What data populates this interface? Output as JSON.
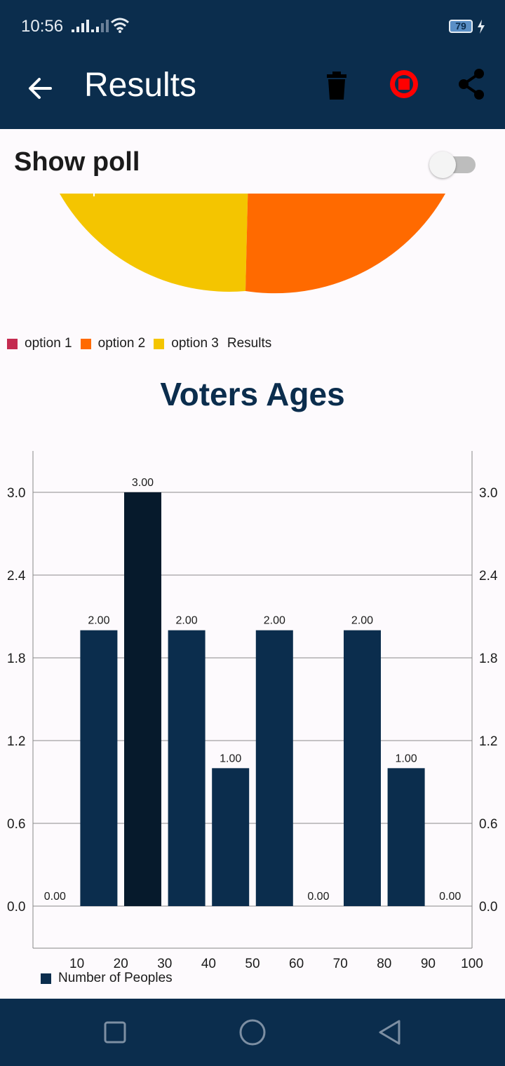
{
  "status_bar": {
    "time": "10:56",
    "battery": "79"
  },
  "app_bar": {
    "title": "Results",
    "icons": [
      "back-arrow-icon",
      "trash-icon",
      "stop-icon",
      "share-icon"
    ],
    "colors": {
      "background": "#0b2d4d",
      "stop": "#ff0000"
    }
  },
  "poll": {
    "label": "Show poll",
    "enabled": false
  },
  "pie": {
    "legend": [
      {
        "label": "option 1",
        "color": "#c42b50"
      },
      {
        "label": "option 2",
        "color": "#ff6a00"
      },
      {
        "label": "option 3",
        "color": "#f4c500"
      }
    ],
    "label": "Results"
  },
  "chart_data": {
    "type": "bar",
    "title": "Voters Ages",
    "categories": [
      "10",
      "20",
      "30",
      "40",
      "50",
      "60",
      "70",
      "80",
      "90",
      "100"
    ],
    "series": [
      {
        "name": "Number of Peoples",
        "values": [
          0,
          2,
          3,
          2,
          1,
          2,
          0,
          2,
          1,
          0
        ]
      }
    ],
    "value_labels": [
      "0.00",
      "2.00",
      "3.00",
      "2.00",
      "1.00",
      "2.00",
      "0.00",
      "2.00",
      "1.00",
      "0.00"
    ],
    "y_ticks": [
      "0.0",
      "0.6",
      "1.2",
      "1.8",
      "2.4",
      "3.0"
    ],
    "ylim": [
      0,
      3.0
    ],
    "grid": true,
    "legend_position": "bottom-left",
    "highlighted_index": 2,
    "colors": {
      "bar": "#0b2d4d",
      "highlight": "#061a2c"
    }
  }
}
